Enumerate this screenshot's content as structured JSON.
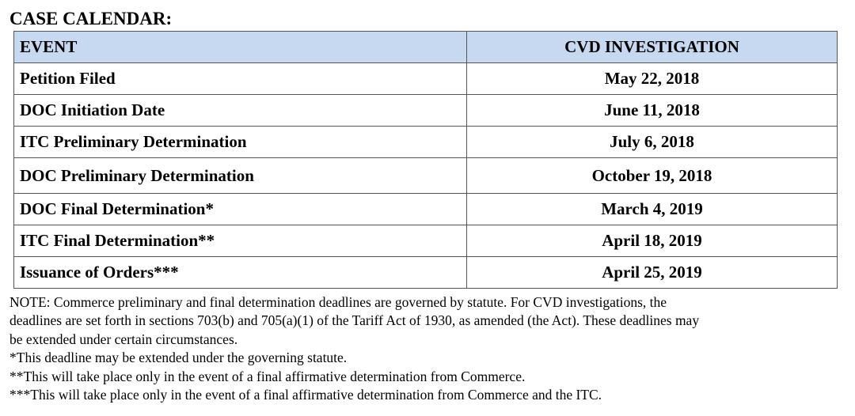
{
  "header": {
    "title": "CASE CALENDAR:"
  },
  "table": {
    "columns": [
      "EVENT",
      "CVD INVESTIGATION"
    ],
    "rows": [
      [
        "Petition Filed",
        "May 22, 2018"
      ],
      [
        "DOC Initiation Date",
        "June 11, 2018"
      ],
      [
        "ITC Preliminary Determination",
        "July 6, 2018"
      ],
      [
        "DOC Preliminary Determination",
        "October 19, 2018"
      ],
      [
        "DOC Final Determination*",
        "March 4, 2019"
      ],
      [
        "ITC Final Determination**",
        "April 18, 2019"
      ],
      [
        "Issuance of Orders***",
        "April 25, 2019"
      ]
    ]
  },
  "notes": [
    "NOTE:  Commerce preliminary and final determination deadlines are governed by statute.  For CVD investigations, the",
    "deadlines are set forth in sections 703(b) and 705(a)(1) of the Tariff Act of 1930, as amended (the Act). These deadlines may",
    "be extended under certain circumstances.",
    "*This deadline may be extended under the governing statute.",
    "**This will take place only in the event of a final affirmative determination from Commerce.",
    "***This will take place only in the event of a final affirmative determination from Commerce and the ITC."
  ]
}
